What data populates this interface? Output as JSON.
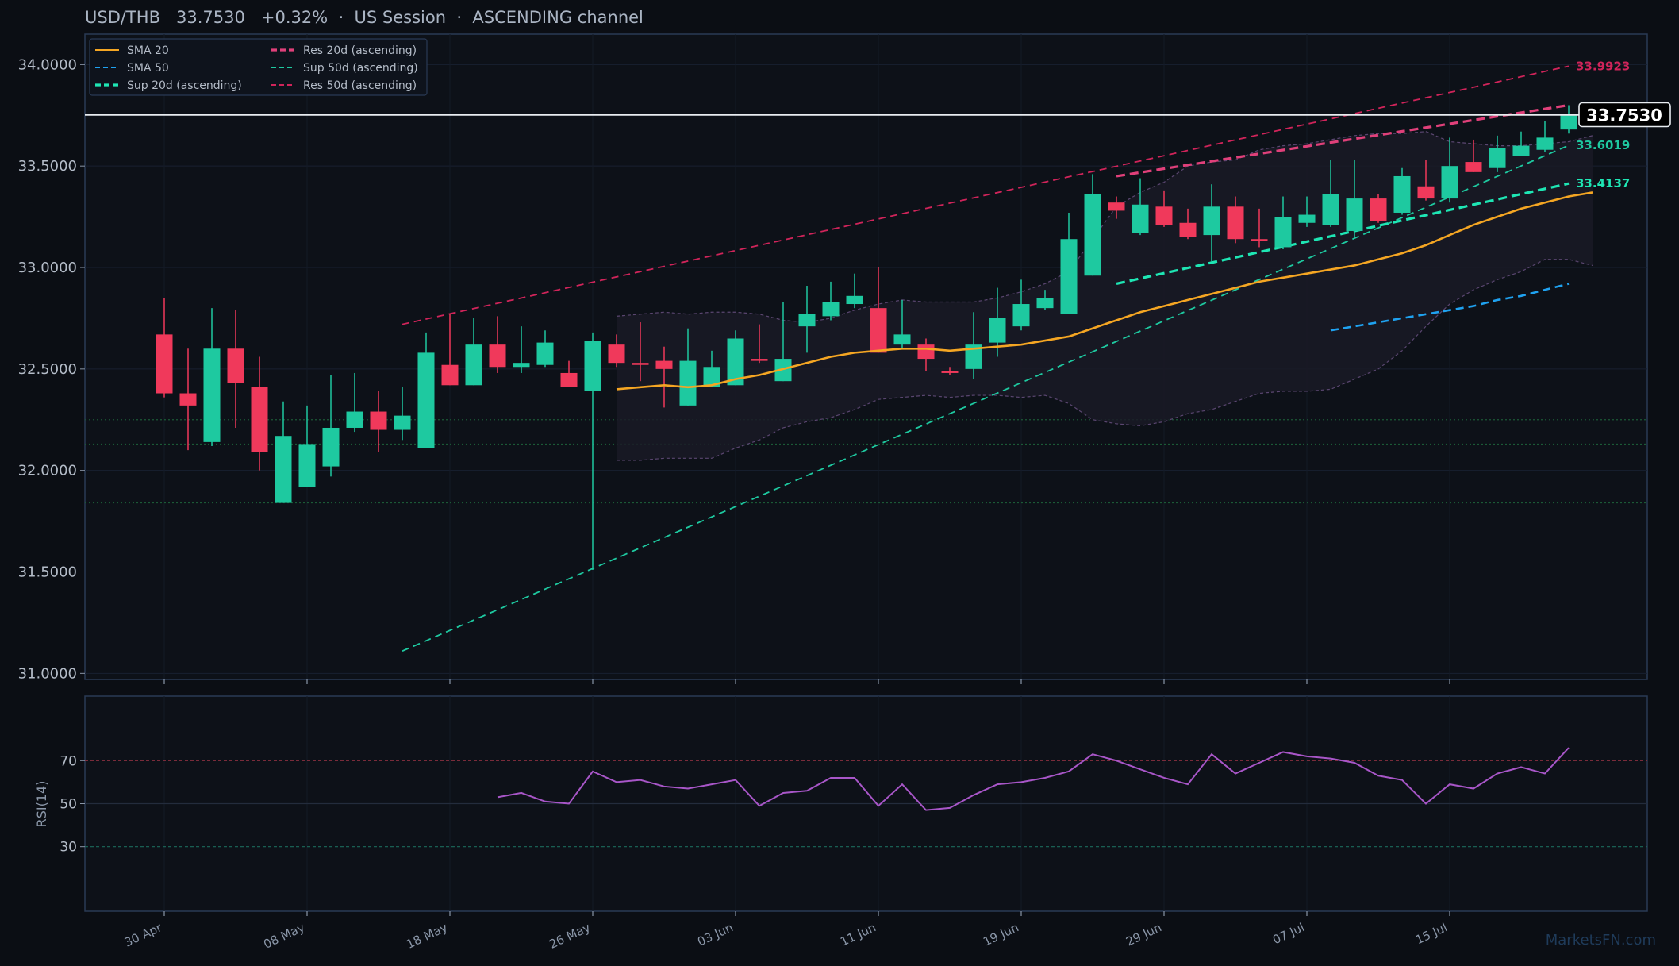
{
  "header": {
    "title": "USD/THB   33.7530   +0.32%  ·  US Session  ·  ASCENDING channel"
  },
  "watermark": "MarketsFN.com",
  "colors": {
    "background": "#0b0e14",
    "up": "#1ec9a0",
    "down": "#f0395b",
    "sma20": "#f5a623",
    "sma50": "#1fa2f0",
    "res": "#e0407a",
    "sup": "#1ec9a0",
    "rsi": "#a856c8",
    "price_line": "#e8ecf0"
  },
  "chart_data": [
    {
      "type": "candlestick",
      "title": "USD/THB",
      "ylim": [
        30.97,
        34.15
      ],
      "y_ticks": [
        "31.0000",
        "31.5000",
        "32.0000",
        "32.5000",
        "33.0000",
        "33.5000",
        "34.0000"
      ],
      "x_tick_labels": [
        "30 Apr",
        "08 May",
        "18 May",
        "26 May",
        "03 Jun",
        "11 Jun",
        "19 Jun",
        "29 Jun",
        "07 Jul",
        "15 Jul"
      ],
      "x_tick_index": [
        0,
        6,
        12,
        18,
        24,
        30,
        36,
        42,
        48,
        54
      ],
      "last_price": "33.7530",
      "legend": {
        "position": "top-left",
        "entries": [
          {
            "label": "SMA 20",
            "style": "solid",
            "color": "#f5a623"
          },
          {
            "label": "SMA 50",
            "style": "dashed",
            "color": "#1fa2f0"
          },
          {
            "label": "Sup 20d (ascending)",
            "style": "bold-dashed",
            "color": "#1ee6b4"
          },
          {
            "label": "Res 20d (ascending)",
            "style": "bold-dashed",
            "color": "#e0407a"
          },
          {
            "label": "Sup 50d (ascending)",
            "style": "dashed",
            "color": "#1ec9a0"
          },
          {
            "label": "Res 50d (ascending)",
            "style": "dashed",
            "color": "#d0245a"
          }
        ]
      },
      "right_labels": [
        {
          "value": "33.9923",
          "color": "#d0245a"
        },
        {
          "value": "33.6019",
          "color": "#1ec9a0"
        },
        {
          "value": "33.4137",
          "color": "#1ee6b4"
        }
      ],
      "horizontal_levels": [
        32.25,
        32.13,
        31.84
      ],
      "candles": [
        {
          "o": 32.67,
          "h": 32.85,
          "l": 32.36,
          "c": 32.38
        },
        {
          "o": 32.38,
          "h": 32.6,
          "l": 32.1,
          "c": 32.32
        },
        {
          "o": 32.14,
          "h": 32.8,
          "l": 32.12,
          "c": 32.6
        },
        {
          "o": 32.6,
          "h": 32.79,
          "l": 32.21,
          "c": 32.43
        },
        {
          "o": 32.41,
          "h": 32.56,
          "l": 32.0,
          "c": 32.09
        },
        {
          "o": 31.84,
          "h": 32.34,
          "l": 31.84,
          "c": 32.17
        },
        {
          "o": 31.92,
          "h": 32.32,
          "l": 31.92,
          "c": 32.13
        },
        {
          "o": 32.02,
          "h": 32.47,
          "l": 31.97,
          "c": 32.21
        },
        {
          "o": 32.21,
          "h": 32.48,
          "l": 32.19,
          "c": 32.29
        },
        {
          "o": 32.29,
          "h": 32.39,
          "l": 32.09,
          "c": 32.2
        },
        {
          "o": 32.2,
          "h": 32.41,
          "l": 32.15,
          "c": 32.27
        },
        {
          "o": 32.11,
          "h": 32.68,
          "l": 32.11,
          "c": 32.58
        },
        {
          "o": 32.52,
          "h": 32.77,
          "l": 32.42,
          "c": 32.42
        },
        {
          "o": 32.42,
          "h": 32.75,
          "l": 32.42,
          "c": 32.62
        },
        {
          "o": 32.62,
          "h": 32.76,
          "l": 32.48,
          "c": 32.51
        },
        {
          "o": 32.51,
          "h": 32.71,
          "l": 32.48,
          "c": 32.53
        },
        {
          "o": 32.52,
          "h": 32.69,
          "l": 32.51,
          "c": 32.63
        },
        {
          "o": 32.48,
          "h": 32.54,
          "l": 32.41,
          "c": 32.41
        },
        {
          "o": 32.39,
          "h": 32.68,
          "l": 31.51,
          "c": 32.64
        },
        {
          "o": 32.62,
          "h": 32.67,
          "l": 32.51,
          "c": 32.53
        },
        {
          "o": 32.53,
          "h": 32.73,
          "l": 32.44,
          "c": 32.52
        },
        {
          "o": 32.54,
          "h": 32.61,
          "l": 32.31,
          "c": 32.5
        },
        {
          "o": 32.32,
          "h": 32.7,
          "l": 32.32,
          "c": 32.54
        },
        {
          "o": 32.41,
          "h": 32.59,
          "l": 32.41,
          "c": 32.51
        },
        {
          "o": 32.42,
          "h": 32.69,
          "l": 32.42,
          "c": 32.65
        },
        {
          "o": 32.55,
          "h": 32.72,
          "l": 32.53,
          "c": 32.54
        },
        {
          "o": 32.44,
          "h": 32.83,
          "l": 32.44,
          "c": 32.55
        },
        {
          "o": 32.71,
          "h": 32.91,
          "l": 32.58,
          "c": 32.77
        },
        {
          "o": 32.76,
          "h": 32.93,
          "l": 32.74,
          "c": 32.83
        },
        {
          "o": 32.82,
          "h": 32.97,
          "l": 32.8,
          "c": 32.86
        },
        {
          "o": 32.8,
          "h": 33.0,
          "l": 32.58,
          "c": 32.58
        },
        {
          "o": 32.62,
          "h": 32.84,
          "l": 32.6,
          "c": 32.67
        },
        {
          "o": 32.62,
          "h": 32.65,
          "l": 32.49,
          "c": 32.55
        },
        {
          "o": 32.49,
          "h": 32.51,
          "l": 32.47,
          "c": 32.48
        },
        {
          "o": 32.5,
          "h": 32.78,
          "l": 32.45,
          "c": 32.62
        },
        {
          "o": 32.63,
          "h": 32.9,
          "l": 32.56,
          "c": 32.75
        },
        {
          "o": 32.71,
          "h": 32.94,
          "l": 32.69,
          "c": 32.82
        },
        {
          "o": 32.8,
          "h": 32.89,
          "l": 32.79,
          "c": 32.85
        },
        {
          "o": 32.77,
          "h": 33.27,
          "l": 32.77,
          "c": 33.14
        },
        {
          "o": 32.96,
          "h": 33.46,
          "l": 32.96,
          "c": 33.36
        },
        {
          "o": 33.32,
          "h": 33.35,
          "l": 33.24,
          "c": 33.28
        },
        {
          "o": 33.17,
          "h": 33.44,
          "l": 33.16,
          "c": 33.31
        },
        {
          "o": 33.3,
          "h": 33.38,
          "l": 33.2,
          "c": 33.21
        },
        {
          "o": 33.22,
          "h": 33.29,
          "l": 33.14,
          "c": 33.15
        },
        {
          "o": 33.16,
          "h": 33.41,
          "l": 33.03,
          "c": 33.3
        },
        {
          "o": 33.3,
          "h": 33.35,
          "l": 33.12,
          "c": 33.14
        },
        {
          "o": 33.14,
          "h": 33.29,
          "l": 33.1,
          "c": 33.13
        },
        {
          "o": 33.1,
          "h": 33.35,
          "l": 33.09,
          "c": 33.25
        },
        {
          "o": 33.22,
          "h": 33.35,
          "l": 33.2,
          "c": 33.26
        },
        {
          "o": 33.21,
          "h": 33.53,
          "l": 33.2,
          "c": 33.36
        },
        {
          "o": 33.18,
          "h": 33.53,
          "l": 33.15,
          "c": 33.34
        },
        {
          "o": 33.34,
          "h": 33.36,
          "l": 33.22,
          "c": 33.23
        },
        {
          "o": 33.27,
          "h": 33.49,
          "l": 33.26,
          "c": 33.45
        },
        {
          "o": 33.4,
          "h": 33.53,
          "l": 33.33,
          "c": 33.34
        },
        {
          "o": 33.34,
          "h": 33.64,
          "l": 33.32,
          "c": 33.5
        },
        {
          "o": 33.52,
          "h": 33.63,
          "l": 33.47,
          "c": 33.47
        },
        {
          "o": 33.49,
          "h": 33.65,
          "l": 33.47,
          "c": 33.59
        },
        {
          "o": 33.55,
          "h": 33.67,
          "l": 33.55,
          "c": 33.6
        },
        {
          "o": 33.58,
          "h": 33.72,
          "l": 33.57,
          "c": 33.64
        },
        {
          "o": 33.68,
          "h": 33.8,
          "l": 33.66,
          "c": 33.75
        }
      ],
      "sma20": {
        "start": 19,
        "values": [
          32.4,
          32.41,
          32.42,
          32.41,
          32.42,
          32.45,
          32.47,
          32.5,
          32.53,
          32.56,
          32.58,
          32.59,
          32.6,
          32.6,
          32.59,
          32.6,
          32.61,
          32.62,
          32.64,
          32.66,
          32.7,
          32.74,
          32.78,
          32.81,
          32.84,
          32.87,
          32.9,
          32.93,
          32.95,
          32.97,
          32.99,
          33.01,
          33.04,
          33.07,
          33.11,
          33.16,
          33.21,
          33.25,
          33.29,
          33.32,
          33.35,
          33.37
        ]
      },
      "sma50": {
        "start": 49,
        "values": [
          32.69,
          32.71,
          32.73,
          32.75,
          32.77,
          32.79,
          32.81,
          32.84,
          32.86,
          32.89,
          32.92
        ]
      },
      "bb_upper": {
        "start": 19,
        "values": [
          32.76,
          32.77,
          32.78,
          32.77,
          32.78,
          32.78,
          32.77,
          32.74,
          32.73,
          32.75,
          32.79,
          32.82,
          32.84,
          32.83,
          32.83,
          32.83,
          32.85,
          32.88,
          32.92,
          32.98,
          33.14,
          33.3,
          33.37,
          33.42,
          33.5,
          33.52,
          33.53,
          33.58,
          33.6,
          33.61,
          33.63,
          33.65,
          33.66,
          33.66,
          33.67,
          33.62,
          33.61,
          33.6,
          33.6,
          33.61,
          33.62,
          33.65
        ]
      },
      "bb_lower": {
        "start": 19,
        "values": [
          32.05,
          32.05,
          32.06,
          32.06,
          32.06,
          32.11,
          32.15,
          32.21,
          32.24,
          32.26,
          32.3,
          32.35,
          32.36,
          32.37,
          32.36,
          32.37,
          32.37,
          32.36,
          32.37,
          32.33,
          32.25,
          32.23,
          32.22,
          32.24,
          32.28,
          32.3,
          32.34,
          32.38,
          32.39,
          32.39,
          32.4,
          32.45,
          32.5,
          32.59,
          32.71,
          32.82,
          32.89,
          32.94,
          32.98,
          33.04,
          33.04,
          33.01
        ]
      },
      "trendlines": [
        {
          "name": "Res 50d (ascending)",
          "from": [
            10,
            32.72
          ],
          "to": [
            59,
            33.9923
          ],
          "color": "#d0245a",
          "width": 1.8,
          "dash": "9,6"
        },
        {
          "name": "Sup 50d (ascending)",
          "from": [
            10,
            31.11
          ],
          "to": [
            59,
            33.6019
          ],
          "color": "#1ec9a0",
          "width": 1.8,
          "dash": "9,6"
        },
        {
          "name": "Res 20d (ascending)",
          "from": [
            40,
            33.45
          ],
          "to": [
            59,
            33.8
          ],
          "color": "#e0407a",
          "width": 3.2,
          "dash": "11,6"
        },
        {
          "name": "Sup 20d (ascending)",
          "from": [
            40,
            32.92
          ],
          "to": [
            59,
            33.4137
          ],
          "color": "#1ee6b4",
          "width": 3.2,
          "dash": "11,6"
        }
      ]
    },
    {
      "type": "line",
      "ylabel": "RSI(14)",
      "ylim": [
        0,
        100
      ],
      "y_ticks": [
        "30",
        "50",
        "70"
      ],
      "reference_levels": [
        70,
        50,
        30
      ],
      "series": [
        {
          "start": 14,
          "values": [
            53,
            55,
            51,
            50,
            65,
            60,
            61,
            58,
            57,
            59,
            61,
            49,
            55,
            56,
            62,
            62,
            49,
            59,
            47,
            48,
            54,
            59,
            60,
            62,
            65,
            73,
            70,
            66,
            62,
            59,
            73,
            64,
            69,
            74,
            72,
            71,
            69,
            63,
            61,
            50,
            59,
            57,
            64,
            67,
            64,
            76
          ]
        }
      ]
    }
  ]
}
